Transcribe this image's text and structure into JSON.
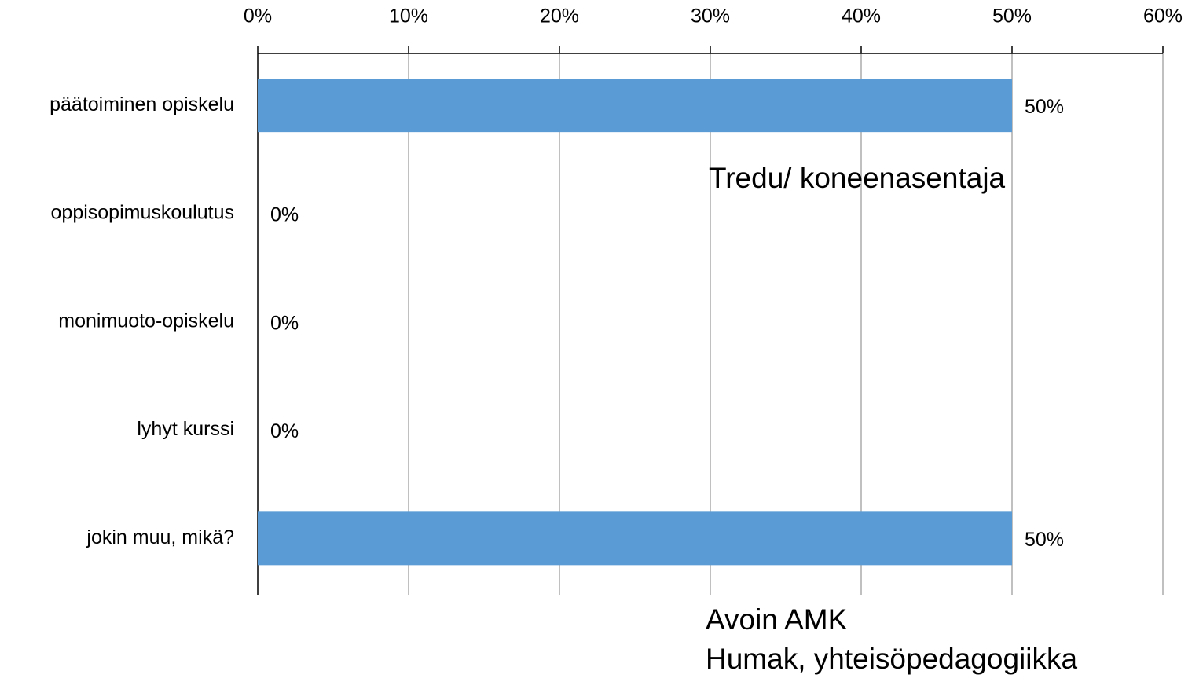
{
  "chart_data": {
    "type": "barh",
    "categories": [
      "päätoiminen opiskelu",
      "oppisopimuskoulutus",
      "monimuoto-opiskelu",
      "lyhyt kurssi",
      "jokin muu, mikä?"
    ],
    "values": [
      50,
      0,
      0,
      0,
      50
    ],
    "value_labels": [
      "50%",
      "0%",
      "0%",
      "0%",
      "50%"
    ],
    "color": "#5b9bd5",
    "xlim": [
      0,
      60
    ],
    "xticks": [
      {
        "value": 0,
        "label": "0%"
      },
      {
        "value": 10,
        "label": "10%"
      },
      {
        "value": 20,
        "label": "20%"
      },
      {
        "value": 30,
        "label": "30%"
      },
      {
        "value": 40,
        "label": "40%"
      },
      {
        "value": 50,
        "label": "50%"
      },
      {
        "value": 60,
        "label": "60%"
      }
    ],
    "grid": true,
    "annotations": [
      "Tredu/ koneenasentaja",
      "Avoin AMK",
      "Humak, yhteisöpedagogiikka"
    ]
  }
}
